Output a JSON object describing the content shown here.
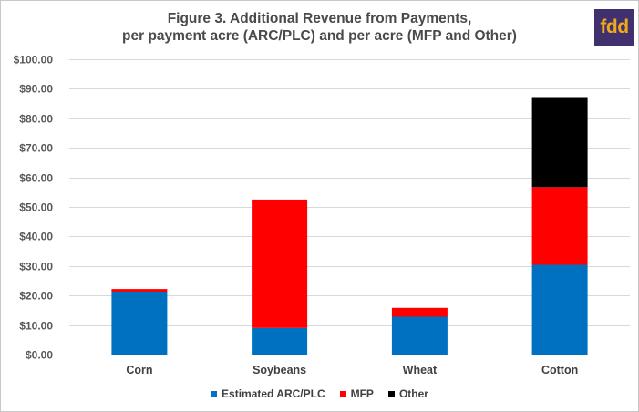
{
  "title_lines": [
    "Figure 3. Additional Revenue from Payments,",
    "per payment acre (ARC/PLC) and per acre (MFP and Other)"
  ],
  "logo_text": "fdd",
  "colors": {
    "Estimated ARC/PLC": "#0070c0",
    "MFP": "#ff0000",
    "Other": "#000000",
    "logo_bg": "#40306e",
    "logo_text": "#f0a81c",
    "grid": "#d9d9d9"
  },
  "chart_data": {
    "type": "bar",
    "stacked": true,
    "title": "Figure 3. Additional Revenue from Payments, per payment acre (ARC/PLC) and per acre (MFP and Other)",
    "categories": [
      "Corn",
      "Soybeans",
      "Wheat",
      "Cotton"
    ],
    "series": [
      {
        "name": "Estimated ARC/PLC",
        "values": [
          21.3,
          9.0,
          12.8,
          30.4
        ]
      },
      {
        "name": "MFP",
        "values": [
          0.9,
          43.5,
          3.0,
          26.3
        ]
      },
      {
        "name": "Other",
        "values": [
          0,
          0,
          0,
          30.5
        ]
      }
    ],
    "yticks": [
      "$0.00",
      "$10.00",
      "$20.00",
      "$30.00",
      "$40.00",
      "$50.00",
      "$60.00",
      "$70.00",
      "$80.00",
      "$90.00",
      "$100.00"
    ],
    "ylim": [
      0,
      100
    ],
    "ystep": 10,
    "grid": true,
    "legend": "bottom",
    "xlabel": "",
    "ylabel": ""
  }
}
